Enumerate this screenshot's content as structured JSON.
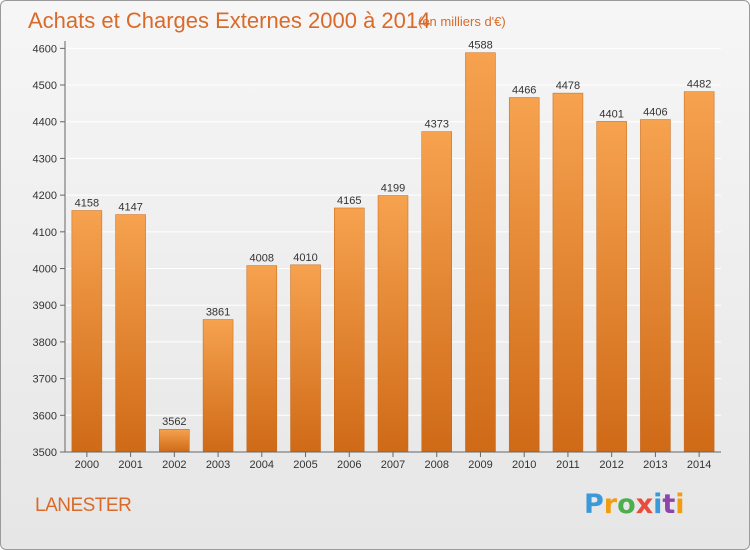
{
  "chart_data": {
    "type": "bar",
    "title": "Achats et Charges Externes 2000 à 2014",
    "subtitle": "(en milliers d'€)",
    "categories": [
      "2000",
      "2001",
      "2002",
      "2003",
      "2004",
      "2005",
      "2006",
      "2007",
      "2008",
      "2009",
      "2010",
      "2011",
      "2012",
      "2013",
      "2014"
    ],
    "values": [
      4158,
      4147,
      3562,
      3861,
      4008,
      4010,
      4165,
      4199,
      4373,
      4588,
      4466,
      4478,
      4401,
      4406,
      4482
    ],
    "ylim": [
      3500,
      4620
    ],
    "yticks": [
      3500,
      3600,
      3700,
      3800,
      3900,
      4000,
      4100,
      4200,
      4300,
      4400,
      4500,
      4600
    ],
    "grid": "horizontal",
    "bar_color": "#f0913a",
    "bar_color_dark": "#d8731e"
  },
  "footer": {
    "city": "LANESTER",
    "logo_letters": [
      "P",
      "r",
      "o",
      "x",
      "i",
      "t",
      "i"
    ],
    "logo_colors": [
      "#3a9ad9",
      "#f39c12",
      "#4cae4c",
      "#e74c3c",
      "#3a9ad9",
      "#8e44ad",
      "#f39c12"
    ]
  }
}
